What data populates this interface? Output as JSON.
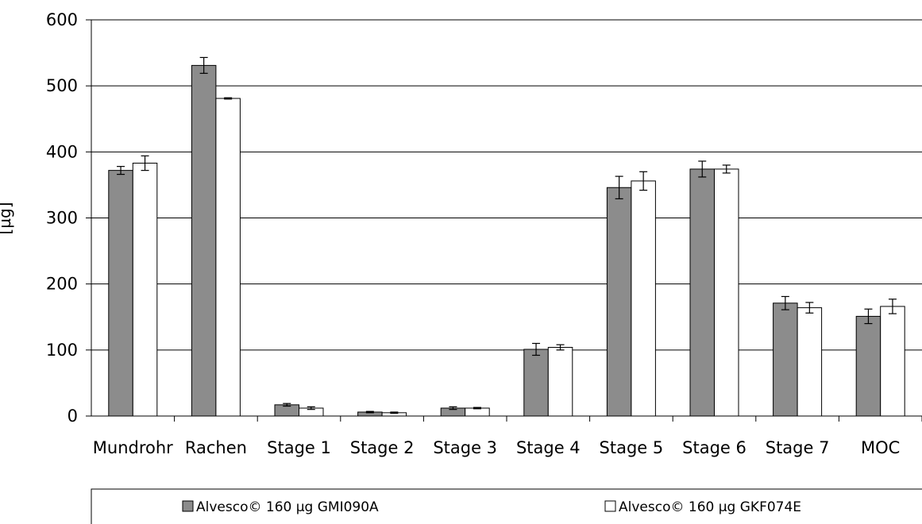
{
  "chart_data": {
    "type": "bar",
    "title": "",
    "xlabel": "",
    "ylabel": "[µg]",
    "ylim": [
      0,
      600
    ],
    "yticks": [
      "0",
      "100",
      "200",
      "300",
      "400",
      "500",
      "600"
    ],
    "categories": [
      "Mundrohr",
      "Rachen",
      "Stage 1",
      "Stage 2",
      "Stage 3",
      "Stage 4",
      "Stage 5",
      "Stage 6",
      "Stage 7",
      "MOC"
    ],
    "series": [
      {
        "name": "Alvesco© 160 µg GMI090A",
        "color": "#8c8c8c",
        "values": [
          372,
          531,
          17,
          6,
          12,
          101,
          346,
          374,
          171,
          151
        ],
        "errors": [
          6,
          12,
          2,
          1,
          2,
          9,
          17,
          12,
          10,
          11
        ]
      },
      {
        "name": "Alvesco© 160 µg GKF074E",
        "color": "#ffffff",
        "values": [
          383,
          481,
          12,
          5,
          12,
          104,
          356,
          374,
          164,
          166
        ],
        "errors": [
          11,
          1,
          2,
          1,
          1,
          4,
          14,
          6,
          8,
          11
        ]
      }
    ],
    "grid": true,
    "legend_position": "bottom"
  }
}
